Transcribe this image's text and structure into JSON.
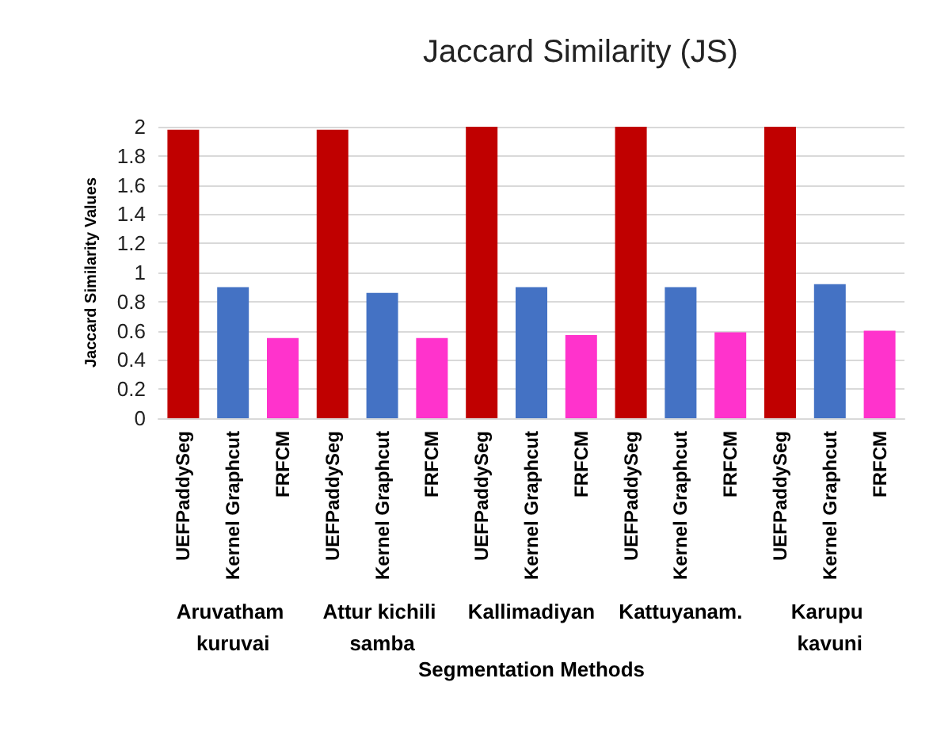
{
  "chart_data": {
    "type": "bar",
    "title": "Jaccard Similarity (JS)",
    "xlabel": "Segmentation Methods",
    "ylabel": "Jaccard Similarity Values",
    "categories": [
      "UEFPaddySeg",
      "Kernel Graphcut",
      "FRFCM",
      "UEFPaddySeg",
      "Kernel Graphcut",
      "FRFCM",
      "UEFPaddySeg",
      "Kernel Graphcut",
      "FRFCM",
      "UEFPaddySeg",
      "Kernel Graphcut",
      "FRFCM",
      "UEFPaddySeg",
      "Kernel Graphcut",
      "FRFCM"
    ],
    "values": [
      1.98,
      0.9,
      0.55,
      1.98,
      0.86,
      0.55,
      2.0,
      0.9,
      0.57,
      2.0,
      0.9,
      0.59,
      2.0,
      0.92,
      0.6
    ],
    "colors": [
      "#c00000",
      "#4472c4",
      "#ff33cc",
      "#c00000",
      "#4472c4",
      "#ff33cc",
      "#c00000",
      "#4472c4",
      "#ff33cc",
      "#c00000",
      "#4472c4",
      "#ff33cc",
      "#c00000",
      "#4472c4",
      "#ff33cc"
    ],
    "annotations": [
      "Aruvatham kuruvai",
      "Attur kichili samba",
      "Kallimadiyan",
      "Kattuyanam.",
      "Karupu kavuni"
    ],
    "ylim": [
      0,
      2
    ],
    "yticks": [
      0,
      0.2,
      0.4,
      0.6,
      0.8,
      1,
      1.2,
      1.4,
      1.6,
      1.8,
      2
    ],
    "grid": "y"
  }
}
